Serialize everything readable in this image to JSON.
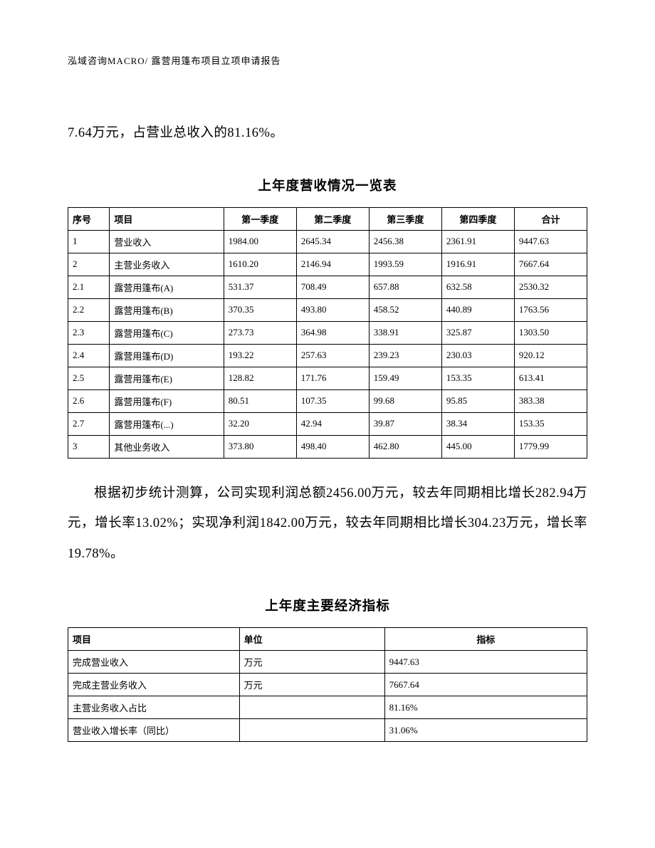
{
  "header": "泓域咨询MACRO/   露营用篷布项目立项申请报告",
  "lead_text": "7.64万元，占营业总收入的81.16%。",
  "table1": {
    "title": "上年度营收情况一览表",
    "columns": [
      "序号",
      "项目",
      "第一季度",
      "第二季度",
      "第三季度",
      "第四季度",
      "合计"
    ],
    "rows": [
      [
        "1",
        "营业收入",
        "1984.00",
        "2645.34",
        "2456.38",
        "2361.91",
        "9447.63"
      ],
      [
        "2",
        "主营业务收入",
        "1610.20",
        "2146.94",
        "1993.59",
        "1916.91",
        "7667.64"
      ],
      [
        "2.1",
        "露营用篷布(A)",
        "531.37",
        "708.49",
        "657.88",
        "632.58",
        "2530.32"
      ],
      [
        "2.2",
        "露营用篷布(B)",
        "370.35",
        "493.80",
        "458.52",
        "440.89",
        "1763.56"
      ],
      [
        "2.3",
        "露营用篷布(C)",
        "273.73",
        "364.98",
        "338.91",
        "325.87",
        "1303.50"
      ],
      [
        "2.4",
        "露营用篷布(D)",
        "193.22",
        "257.63",
        "239.23",
        "230.03",
        "920.12"
      ],
      [
        "2.5",
        "露营用篷布(E)",
        "128.82",
        "171.76",
        "159.49",
        "153.35",
        "613.41"
      ],
      [
        "2.6",
        "露营用篷布(F)",
        "80.51",
        "107.35",
        "99.68",
        "95.85",
        "383.38"
      ],
      [
        "2.7",
        "露营用篷布(...)",
        "32.20",
        "42.94",
        "39.87",
        "38.34",
        "153.35"
      ],
      [
        "3",
        "其他业务收入",
        "373.80",
        "498.40",
        "462.80",
        "445.00",
        "1779.99"
      ]
    ]
  },
  "mid_text": "根据初步统计测算，公司实现利润总额2456.00万元，较去年同期相比增长282.94万元，增长率13.02%；实现净利润1842.00万元，较去年同期相比增长304.23万元，增长率19.78%。",
  "table2": {
    "title": "上年度主要经济指标",
    "columns": [
      "项目",
      "单位",
      "指标"
    ],
    "rows": [
      [
        "完成营业收入",
        "万元",
        "9447.63"
      ],
      [
        "完成主营业务收入",
        "万元",
        "7667.64"
      ],
      [
        "主营业务收入占比",
        "",
        "81.16%"
      ],
      [
        "营业收入增长率（同比）",
        "",
        "31.06%"
      ]
    ]
  }
}
